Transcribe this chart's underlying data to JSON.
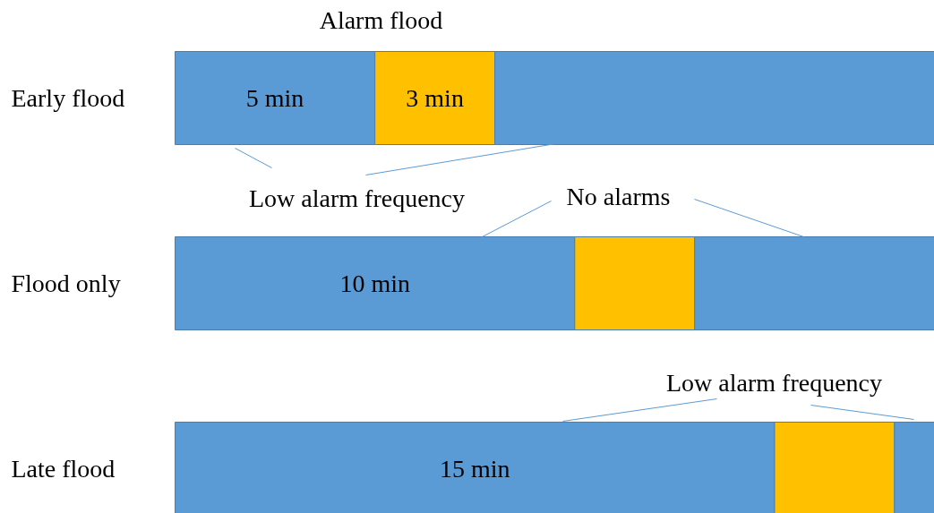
{
  "chart_data": {
    "type": "bar",
    "orientation": "horizontal",
    "stacked": true,
    "tick_labels": false,
    "xlim": [
      0,
      19
    ],
    "categories": [
      "Early flood",
      "Flood only",
      "Late flood"
    ],
    "series": [
      {
        "color": "#5b9bd5",
        "values": [
          5,
          10,
          15
        ],
        "value_labels": [
          "5 min",
          "10 min",
          "15 min"
        ]
      },
      {
        "color": "#ffc000",
        "values": [
          3,
          3,
          3
        ],
        "value_labels": [
          "3 min",
          null,
          null
        ]
      },
      {
        "color": "#5b9bd5",
        "values": [
          11,
          6,
          1
        ],
        "value_labels": [
          null,
          null,
          null
        ]
      }
    ],
    "annotations": [
      "Alarm flood",
      "Low alarm frequency",
      "No alarms",
      "Low alarm frequency"
    ]
  }
}
